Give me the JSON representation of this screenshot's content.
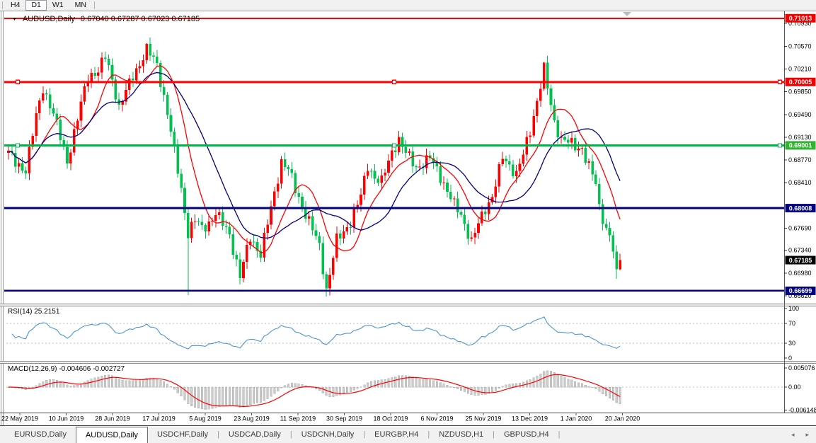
{
  "toolbar": {
    "buttons": [
      {
        "label": "H4",
        "active": false
      },
      {
        "label": "D1",
        "active": true
      },
      {
        "label": "W1",
        "active": false
      },
      {
        "label": "MN",
        "active": false
      }
    ]
  },
  "chart_header": {
    "dropdown_icon": "▼",
    "symbol_label": "AUDUSD,Daily",
    "quote_line": "0.67040 0.67287 0.67023 0.67185"
  },
  "tabs": {
    "separator": "|",
    "scroll_left_icon": "◂",
    "scroll_right_icon": "▸",
    "items": [
      {
        "label": "EURUSD,Daily",
        "active": false
      },
      {
        "label": "AUDUSD,Daily",
        "active": true
      },
      {
        "label": "USDCHF,Daily",
        "active": false
      },
      {
        "label": "USDCAD,Daily",
        "active": false
      },
      {
        "label": "USDCNH,Daily",
        "active": false
      },
      {
        "label": "EURGBP,H4",
        "active": false
      },
      {
        "label": "NZDUSD,H1",
        "active": false
      },
      {
        "label": "GBPUSD,H4",
        "active": false
      }
    ]
  },
  "chart_data": {
    "type": "candlestick_with_indicators",
    "symbol": "AUDUSD",
    "timeframe": "Daily",
    "quote_ohlc": {
      "open": "0.67040",
      "high": "0.67287",
      "low": "0.67023",
      "close": "0.67185"
    },
    "bar_count": 178,
    "price_path": [
      [
        0,
        0.6888
      ],
      [
        2,
        0.6872
      ],
      [
        5,
        0.6862
      ],
      [
        8,
        0.6945
      ],
      [
        10,
        0.6992
      ],
      [
        13,
        0.695
      ],
      [
        17,
        0.6875
      ],
      [
        20,
        0.6942
      ],
      [
        23,
        0.701
      ],
      [
        26,
        0.7018
      ],
      [
        28,
        0.704
      ],
      [
        30,
        0.7005
      ],
      [
        32,
        0.696
      ],
      [
        34,
        0.6985
      ],
      [
        36,
        0.701
      ],
      [
        38,
        0.703
      ],
      [
        40,
        0.7052
      ],
      [
        43,
        0.7028
      ],
      [
        46,
        0.6952
      ],
      [
        48,
        0.689
      ],
      [
        50,
        0.683
      ],
      [
        52,
        0.6762
      ],
      [
        54,
        0.6782
      ],
      [
        56,
        0.6768
      ],
      [
        58,
        0.6778
      ],
      [
        60,
        0.6792
      ],
      [
        62,
        0.6776
      ],
      [
        64,
        0.676
      ],
      [
        67,
        0.6692
      ],
      [
        70,
        0.6755
      ],
      [
        73,
        0.6728
      ],
      [
        76,
        0.68
      ],
      [
        79,
        0.6875
      ],
      [
        81,
        0.6862
      ],
      [
        83,
        0.683
      ],
      [
        87,
        0.678
      ],
      [
        90,
        0.674
      ],
      [
        92,
        0.6672
      ],
      [
        95,
        0.675
      ],
      [
        97,
        0.6762
      ],
      [
        99,
        0.678
      ],
      [
        102,
        0.682
      ],
      [
        104,
        0.6868
      ],
      [
        106,
        0.685
      ],
      [
        108,
        0.6842
      ],
      [
        111,
        0.689
      ],
      [
        113,
        0.691
      ],
      [
        115,
        0.6888
      ],
      [
        118,
        0.6865
      ],
      [
        120,
        0.6872
      ],
      [
        122,
        0.688
      ],
      [
        124,
        0.6862
      ],
      [
        126,
        0.684
      ],
      [
        129,
        0.6805
      ],
      [
        131,
        0.679
      ],
      [
        134,
        0.6748
      ],
      [
        136,
        0.6775
      ],
      [
        138,
        0.68
      ],
      [
        140,
        0.682
      ],
      [
        143,
        0.688
      ],
      [
        145,
        0.6868
      ],
      [
        147,
        0.6856
      ],
      [
        149,
        0.6885
      ],
      [
        151,
        0.6922
      ],
      [
        153,
        0.6972
      ],
      [
        155,
        0.7022
      ],
      [
        156,
        0.699
      ],
      [
        158,
        0.6935
      ],
      [
        160,
        0.6912
      ],
      [
        162,
        0.6906
      ],
      [
        164,
        0.6896
      ],
      [
        166,
        0.6896
      ],
      [
        168,
        0.6868
      ],
      [
        170,
        0.6838
      ],
      [
        171,
        0.68
      ],
      [
        172,
        0.6785
      ],
      [
        173,
        0.677
      ],
      [
        174,
        0.6758
      ],
      [
        175,
        0.6736
      ],
      [
        176,
        0.6704
      ],
      [
        177,
        0.67185
      ]
    ],
    "candle_overrides": {
      "40": {
        "high": 0.7062
      },
      "52": {
        "low": 0.6663
      },
      "67": {
        "low": 0.668
      },
      "92": {
        "low": 0.6661
      },
      "155": {
        "high": 0.7032
      },
      "176": {
        "close": 0.6704,
        "low": 0.6689
      },
      "177": {
        "open": 0.6704,
        "high": 0.67287,
        "low": 0.67023,
        "close": 0.67185
      }
    },
    "moving_averages": [
      {
        "period": 10,
        "color": "#ff0000"
      },
      {
        "period": 20,
        "color": "#000080"
      }
    ],
    "horizontal_levels": [
      {
        "price": 0.71013,
        "color": "#ff0000",
        "width": 2,
        "handles": false
      },
      {
        "price": 0.70005,
        "color": "#ff0000",
        "width": 3,
        "handles": true
      },
      {
        "price": 0.69001,
        "color": "#00b44c",
        "width": 3,
        "handles": true
      },
      {
        "price": 0.68008,
        "color": "#000080",
        "width": 3,
        "handles": false
      },
      {
        "price": 0.66699,
        "color": "#000080",
        "width": 2.5,
        "handles": false
      }
    ],
    "price_badges": [
      {
        "label": "0.71013",
        "price": 0.71013,
        "bg": "#f00000"
      },
      {
        "label": "0.70005",
        "price": 0.70005,
        "bg": "#f00000"
      },
      {
        "label": "0.69001",
        "price": 0.69001,
        "bg": "#2fb42f"
      },
      {
        "label": "0.68008",
        "price": 0.68008,
        "bg": "#000080"
      },
      {
        "label": "0.67185",
        "price": 0.67185,
        "bg": "#000000"
      },
      {
        "label": "0.66699",
        "price": 0.66699,
        "bg": "#000080"
      }
    ],
    "y_axis_ticks": [
      "0.70930",
      "0.70570",
      "0.70210",
      "0.69850",
      "0.69490",
      "0.69130",
      "0.68770",
      "0.68410",
      "0.67690",
      "0.67340",
      "0.66980",
      "0.66620"
    ],
    "x_axis_labels": [
      "22 May 2019",
      "10 Jun 2019",
      "28 Jun 2019",
      "17 Jul 2019",
      "5 Aug 2019",
      "23 Aug 2019",
      "11 Sep 2019",
      "30 Sep 2019",
      "18 Oct 2019",
      "6 Nov 2019",
      "25 Nov 2019",
      "13 Dec 2019",
      "1 Jan 2020",
      "20 Jan 2020"
    ],
    "rsi": {
      "label": "RSI(14) 25.2151",
      "period": 14,
      "value": 25.2151,
      "color": "#4a96d2",
      "ticks": [
        [
          "100",
          100
        ],
        [
          "70",
          70
        ],
        [
          "30",
          30
        ],
        [
          "0",
          0
        ]
      ],
      "guide_levels": [
        70,
        30
      ]
    },
    "macd": {
      "label": "MACD(12,26,9) -0.004606 -0.002727",
      "fast": 12,
      "slow": 26,
      "signal": 9,
      "macd_value": -0.004606,
      "signal_value": -0.002727,
      "hist_color": "#cbcbcb",
      "hist_edge": "#a3a3a3",
      "signal_color": "#ff0000",
      "ticks": [
        [
          "0.005076",
          0.005076
        ],
        [
          "0.00",
          0
        ],
        [
          "-0.006148",
          -0.006148
        ]
      ]
    },
    "colors": {
      "bull": "#ff0000",
      "bear": "#00c24e",
      "background": "#ffffff",
      "axis_text": "#000000"
    }
  }
}
